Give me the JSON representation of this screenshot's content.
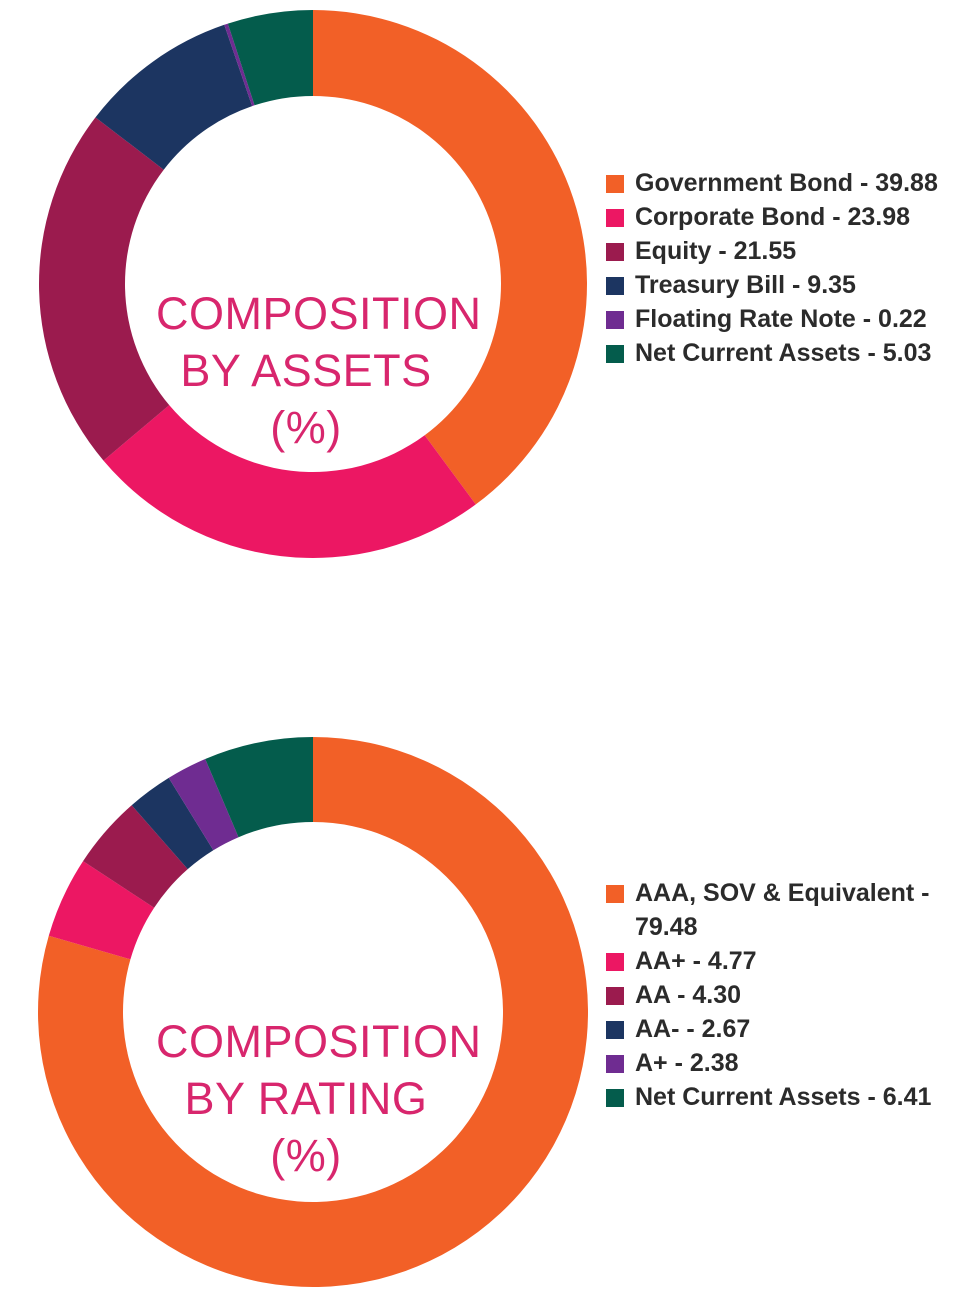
{
  "chart_data": [
    {
      "type": "pie",
      "title_lines": [
        "COMPOSITION",
        "BY ASSETS",
        "(%)"
      ],
      "categories": [
        "Government Bond",
        "Corporate Bond",
        "Equity",
        "Treasury Bill",
        "Floating Rate Note",
        "Net Current Assets"
      ],
      "values": [
        39.88,
        23.98,
        21.55,
        9.35,
        0.22,
        5.03
      ],
      "legend_labels": [
        "Government Bond - 39.88",
        "Corporate Bond - 23.98",
        "Equity - 21.55",
        "Treasury Bill - 9.35",
        "Floating Rate Note - 0.22",
        "Net Current Assets - 5.03"
      ],
      "colors": [
        "#f26027",
        "#ec1763",
        "#9b1b4e",
        "#1c3561",
        "#6f2c91",
        "#045c4c"
      ],
      "legend_placement": "right"
    },
    {
      "type": "pie",
      "title_lines": [
        "COMPOSITION",
        "BY RATING",
        "(%)"
      ],
      "categories": [
        "AAA, SOV & Equivalent",
        "AA+",
        "AA",
        "AA-",
        "A+",
        "Net Current Assets"
      ],
      "values": [
        79.48,
        4.77,
        4.3,
        2.67,
        2.38,
        6.41
      ],
      "legend_labels": [
        "AAA, SOV & Equivalent - 79.48",
        "AA+ - 4.77",
        "AA - 4.30",
        "AA- - 2.67",
        "A+ - 2.38",
        "Net Current Assets - 6.41"
      ],
      "colors": [
        "#f26027",
        "#ec1763",
        "#9b1b4e",
        "#1c3561",
        "#6f2c91",
        "#045c4c"
      ],
      "legend_placement": "right"
    }
  ]
}
